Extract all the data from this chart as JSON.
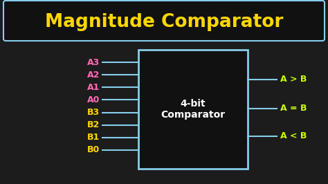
{
  "bg_color": "#1c1c1c",
  "title": "Magnitude Comparator",
  "title_color": "#FFD700",
  "title_border_color": "#87CEEB",
  "title_bg": "#111111",
  "box_color": "#87CEEB",
  "box_label": "4-bit\nComparator",
  "box_label_color": "#FFFFFF",
  "input_labels_A": [
    "A3",
    "A2",
    "A1",
    "A0"
  ],
  "input_labels_B": [
    "B3",
    "B2",
    "B1",
    "B0"
  ],
  "input_color_A": "#FF69B4",
  "input_color_B": "#FFD700",
  "output_labels": [
    "A > B",
    "A = B",
    "A < B"
  ],
  "output_color": "#CCFF00",
  "wire_color": "#87CEEB",
  "box_facecolor": "#111111"
}
